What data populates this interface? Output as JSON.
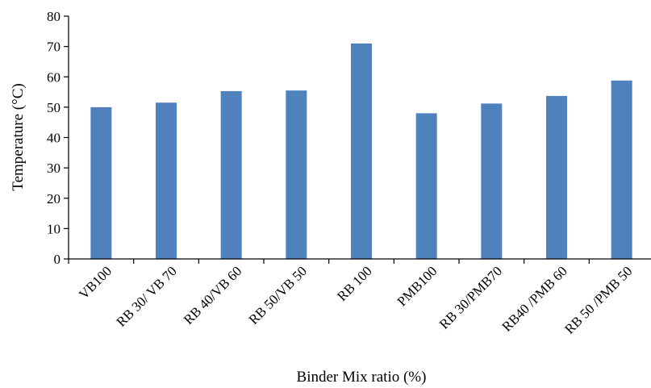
{
  "chart_data": {
    "type": "bar",
    "title": "",
    "xlabel": "Binder Mix ratio (%)",
    "ylabel": "Temperature (°C)",
    "ylim": [
      0,
      80
    ],
    "yticks": [
      0,
      10,
      20,
      30,
      40,
      50,
      60,
      70,
      80
    ],
    "categories": [
      "VB100",
      "RB 30/ VB 70",
      "RB 40/VB 60",
      "RB 50/VB 50",
      "RB 100",
      "PMB100",
      "RB 30/PMB70",
      "RB40 /PMB 60",
      "RB 50 /PMB 50"
    ],
    "values": [
      50,
      51.5,
      55.3,
      55.5,
      71,
      48,
      51.2,
      53.7,
      58.8
    ],
    "bar_color": "#4F81BD",
    "axis_color": "#000000",
    "grid": false,
    "legend": "none"
  }
}
